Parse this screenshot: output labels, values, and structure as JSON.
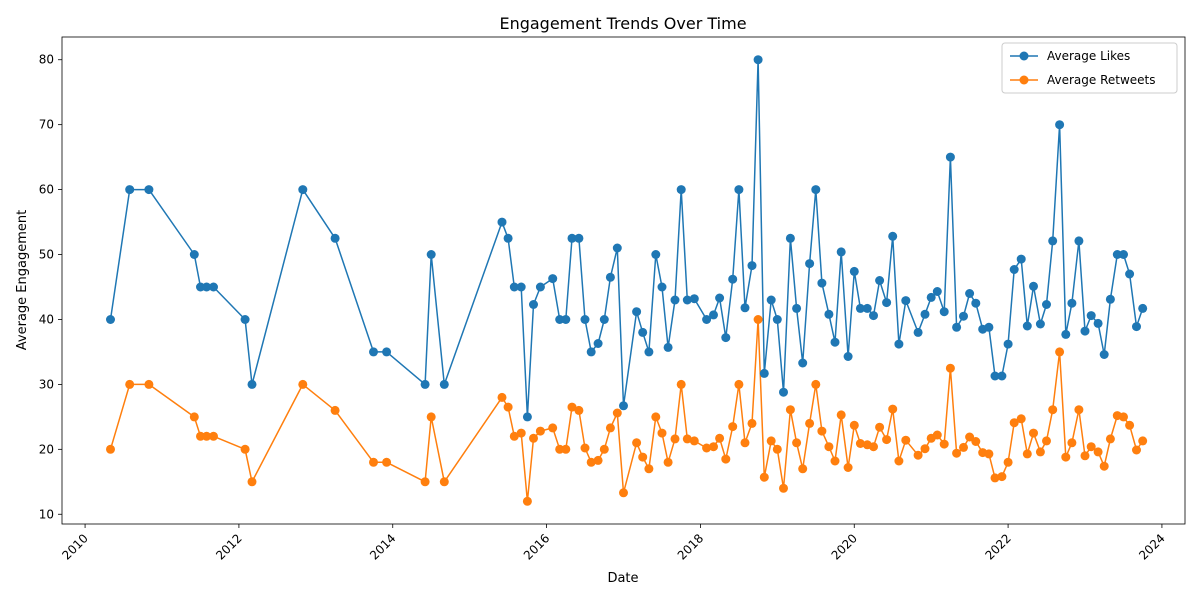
{
  "chart_data": {
    "type": "line",
    "title": "Engagement Trends Over Time",
    "xlabel": "Date",
    "ylabel": "Average Engagement",
    "xlim": [
      2009.7,
      2024.3
    ],
    "ylim": [
      8.5,
      83.5
    ],
    "x_ticks": [
      2010,
      2012,
      2014,
      2016,
      2018,
      2020,
      2022,
      2024
    ],
    "x_tick_labels": [
      "2010",
      "2012",
      "2014",
      "2016",
      "2018",
      "2020",
      "2022",
      "2024"
    ],
    "y_ticks": [
      10,
      20,
      30,
      40,
      50,
      60,
      70,
      80
    ],
    "y_tick_labels": [
      "10",
      "20",
      "30",
      "40",
      "50",
      "60",
      "70",
      "80"
    ],
    "legend_position": "top-right",
    "series": [
      {
        "name": "Average Likes",
        "color": "#1f77b4",
        "points": [
          [
            2010.33,
            40
          ],
          [
            2010.58,
            60
          ],
          [
            2010.83,
            60
          ],
          [
            2011.42,
            50
          ],
          [
            2011.5,
            45
          ],
          [
            2011.58,
            45
          ],
          [
            2011.67,
            45
          ],
          [
            2012.08,
            40
          ],
          [
            2012.17,
            30
          ],
          [
            2012.83,
            60
          ],
          [
            2013.25,
            52.5
          ],
          [
            2013.75,
            35
          ],
          [
            2013.92,
            35
          ],
          [
            2014.42,
            30
          ],
          [
            2014.5,
            50
          ],
          [
            2014.67,
            30
          ],
          [
            2015.42,
            55
          ],
          [
            2015.5,
            52.5
          ],
          [
            2015.58,
            45
          ],
          [
            2015.67,
            45
          ],
          [
            2015.75,
            25
          ],
          [
            2015.83,
            42.3
          ],
          [
            2015.92,
            45
          ],
          [
            2016.08,
            46.3
          ],
          [
            2016.17,
            40
          ],
          [
            2016.25,
            40
          ],
          [
            2016.33,
            52.5
          ],
          [
            2016.42,
            52.5
          ],
          [
            2016.5,
            40
          ],
          [
            2016.58,
            35
          ],
          [
            2016.67,
            36.3
          ],
          [
            2016.75,
            40
          ],
          [
            2016.83,
            46.5
          ],
          [
            2016.92,
            51
          ],
          [
            2017.0,
            26.7
          ],
          [
            2017.17,
            41.2
          ],
          [
            2017.25,
            38
          ],
          [
            2017.33,
            35
          ],
          [
            2017.42,
            50
          ],
          [
            2017.5,
            45
          ],
          [
            2017.58,
            35.7
          ],
          [
            2017.67,
            43
          ],
          [
            2017.75,
            60
          ],
          [
            2017.83,
            43
          ],
          [
            2017.92,
            43.2
          ],
          [
            2018.08,
            40
          ],
          [
            2018.17,
            40.7
          ],
          [
            2018.25,
            43.3
          ],
          [
            2018.33,
            37.2
          ],
          [
            2018.42,
            46.2
          ],
          [
            2018.5,
            60
          ],
          [
            2018.58,
            41.8
          ],
          [
            2018.67,
            48.3
          ],
          [
            2018.75,
            80
          ],
          [
            2018.83,
            31.7
          ],
          [
            2018.92,
            43
          ],
          [
            2019.0,
            40
          ],
          [
            2019.08,
            28.8
          ],
          [
            2019.17,
            52.5
          ],
          [
            2019.25,
            41.7
          ],
          [
            2019.33,
            33.3
          ],
          [
            2019.42,
            48.6
          ],
          [
            2019.5,
            60
          ],
          [
            2019.58,
            45.6
          ],
          [
            2019.67,
            40.8
          ],
          [
            2019.75,
            36.5
          ],
          [
            2019.83,
            50.4
          ],
          [
            2019.92,
            34.3
          ],
          [
            2020.0,
            47.4
          ],
          [
            2020.08,
            41.7
          ],
          [
            2020.17,
            41.7
          ],
          [
            2020.25,
            40.6
          ],
          [
            2020.33,
            46
          ],
          [
            2020.42,
            42.6
          ],
          [
            2020.5,
            52.8
          ],
          [
            2020.58,
            36.2
          ],
          [
            2020.67,
            42.9
          ],
          [
            2020.83,
            38
          ],
          [
            2020.92,
            40.8
          ],
          [
            2021.0,
            43.4
          ],
          [
            2021.08,
            44.3
          ],
          [
            2021.17,
            41.2
          ],
          [
            2021.25,
            65
          ],
          [
            2021.33,
            38.8
          ],
          [
            2021.42,
            40.5
          ],
          [
            2021.5,
            44
          ],
          [
            2021.58,
            42.5
          ],
          [
            2021.67,
            38.5
          ],
          [
            2021.75,
            38.8
          ],
          [
            2021.83,
            31.3
          ],
          [
            2021.92,
            31.3
          ],
          [
            2022.0,
            36.2
          ],
          [
            2022.08,
            47.7
          ],
          [
            2022.17,
            49.3
          ],
          [
            2022.25,
            39
          ],
          [
            2022.33,
            45.1
          ],
          [
            2022.42,
            39.3
          ],
          [
            2022.5,
            42.3
          ],
          [
            2022.58,
            52.1
          ],
          [
            2022.67,
            70
          ],
          [
            2022.75,
            37.7
          ],
          [
            2022.83,
            42.5
          ],
          [
            2022.92,
            52.1
          ],
          [
            2023.0,
            38.2
          ],
          [
            2023.08,
            40.6
          ],
          [
            2023.17,
            39.4
          ],
          [
            2023.25,
            34.6
          ],
          [
            2023.33,
            43.1
          ],
          [
            2023.42,
            50
          ],
          [
            2023.5,
            50
          ],
          [
            2023.58,
            47
          ],
          [
            2023.67,
            38.9
          ],
          [
            2023.75,
            41.7
          ]
        ]
      },
      {
        "name": "Average Retweets",
        "color": "#ff7f0e",
        "points": [
          [
            2010.33,
            20
          ],
          [
            2010.58,
            30
          ],
          [
            2010.83,
            30
          ],
          [
            2011.42,
            25
          ],
          [
            2011.5,
            22
          ],
          [
            2011.58,
            22
          ],
          [
            2011.67,
            22
          ],
          [
            2012.08,
            20
          ],
          [
            2012.17,
            15
          ],
          [
            2012.83,
            30
          ],
          [
            2013.25,
            26
          ],
          [
            2013.75,
            18
          ],
          [
            2013.92,
            18
          ],
          [
            2014.42,
            15
          ],
          [
            2014.5,
            25
          ],
          [
            2014.67,
            15
          ],
          [
            2015.42,
            28
          ],
          [
            2015.5,
            26.5
          ],
          [
            2015.58,
            22
          ],
          [
            2015.67,
            22.5
          ],
          [
            2015.75,
            12
          ],
          [
            2015.83,
            21.7
          ],
          [
            2015.92,
            22.8
          ],
          [
            2016.08,
            23.3
          ],
          [
            2016.17,
            20
          ],
          [
            2016.25,
            20
          ],
          [
            2016.33,
            26.5
          ],
          [
            2016.42,
            26
          ],
          [
            2016.5,
            20.2
          ],
          [
            2016.58,
            18
          ],
          [
            2016.67,
            18.3
          ],
          [
            2016.75,
            20
          ],
          [
            2016.83,
            23.3
          ],
          [
            2016.92,
            25.6
          ],
          [
            2017.0,
            13.3
          ],
          [
            2017.17,
            21
          ],
          [
            2017.25,
            18.8
          ],
          [
            2017.33,
            17
          ],
          [
            2017.42,
            25
          ],
          [
            2017.5,
            22.5
          ],
          [
            2017.58,
            18
          ],
          [
            2017.67,
            21.6
          ],
          [
            2017.75,
            30
          ],
          [
            2017.83,
            21.6
          ],
          [
            2017.92,
            21.3
          ],
          [
            2018.08,
            20.2
          ],
          [
            2018.17,
            20.4
          ],
          [
            2018.25,
            21.7
          ],
          [
            2018.33,
            18.5
          ],
          [
            2018.42,
            23.5
          ],
          [
            2018.5,
            30
          ],
          [
            2018.58,
            21
          ],
          [
            2018.67,
            24
          ],
          [
            2018.75,
            40
          ],
          [
            2018.83,
            15.7
          ],
          [
            2018.92,
            21.3
          ],
          [
            2019.0,
            20
          ],
          [
            2019.08,
            14
          ],
          [
            2019.17,
            26.1
          ],
          [
            2019.25,
            21
          ],
          [
            2019.33,
            17
          ],
          [
            2019.42,
            24
          ],
          [
            2019.5,
            30
          ],
          [
            2019.58,
            22.8
          ],
          [
            2019.67,
            20.4
          ],
          [
            2019.75,
            18.2
          ],
          [
            2019.83,
            25.3
          ],
          [
            2019.92,
            17.2
          ],
          [
            2020.0,
            23.7
          ],
          [
            2020.08,
            20.9
          ],
          [
            2020.17,
            20.7
          ],
          [
            2020.25,
            20.4
          ],
          [
            2020.33,
            23.4
          ],
          [
            2020.42,
            21.5
          ],
          [
            2020.5,
            26.2
          ],
          [
            2020.58,
            18.2
          ],
          [
            2020.67,
            21.4
          ],
          [
            2020.83,
            19.1
          ],
          [
            2020.92,
            20.1
          ],
          [
            2021.0,
            21.7
          ],
          [
            2021.08,
            22.2
          ],
          [
            2021.17,
            20.8
          ],
          [
            2021.25,
            32.5
          ],
          [
            2021.33,
            19.4
          ],
          [
            2021.42,
            20.3
          ],
          [
            2021.5,
            21.9
          ],
          [
            2021.58,
            21.2
          ],
          [
            2021.67,
            19.5
          ],
          [
            2021.75,
            19.3
          ],
          [
            2021.83,
            15.6
          ],
          [
            2021.92,
            15.8
          ],
          [
            2022.0,
            18
          ],
          [
            2022.08,
            24.1
          ],
          [
            2022.17,
            24.7
          ],
          [
            2022.25,
            19.3
          ],
          [
            2022.33,
            22.5
          ],
          [
            2022.42,
            19.6
          ],
          [
            2022.5,
            21.3
          ],
          [
            2022.58,
            26.1
          ],
          [
            2022.67,
            35
          ],
          [
            2022.75,
            18.8
          ],
          [
            2022.83,
            21
          ],
          [
            2022.92,
            26.1
          ],
          [
            2023.0,
            19
          ],
          [
            2023.08,
            20.4
          ],
          [
            2023.17,
            19.6
          ],
          [
            2023.25,
            17.4
          ],
          [
            2023.33,
            21.6
          ],
          [
            2023.42,
            25.2
          ],
          [
            2023.5,
            25
          ],
          [
            2023.58,
            23.7
          ],
          [
            2023.67,
            19.9
          ],
          [
            2023.75,
            21.3
          ]
        ]
      }
    ]
  }
}
